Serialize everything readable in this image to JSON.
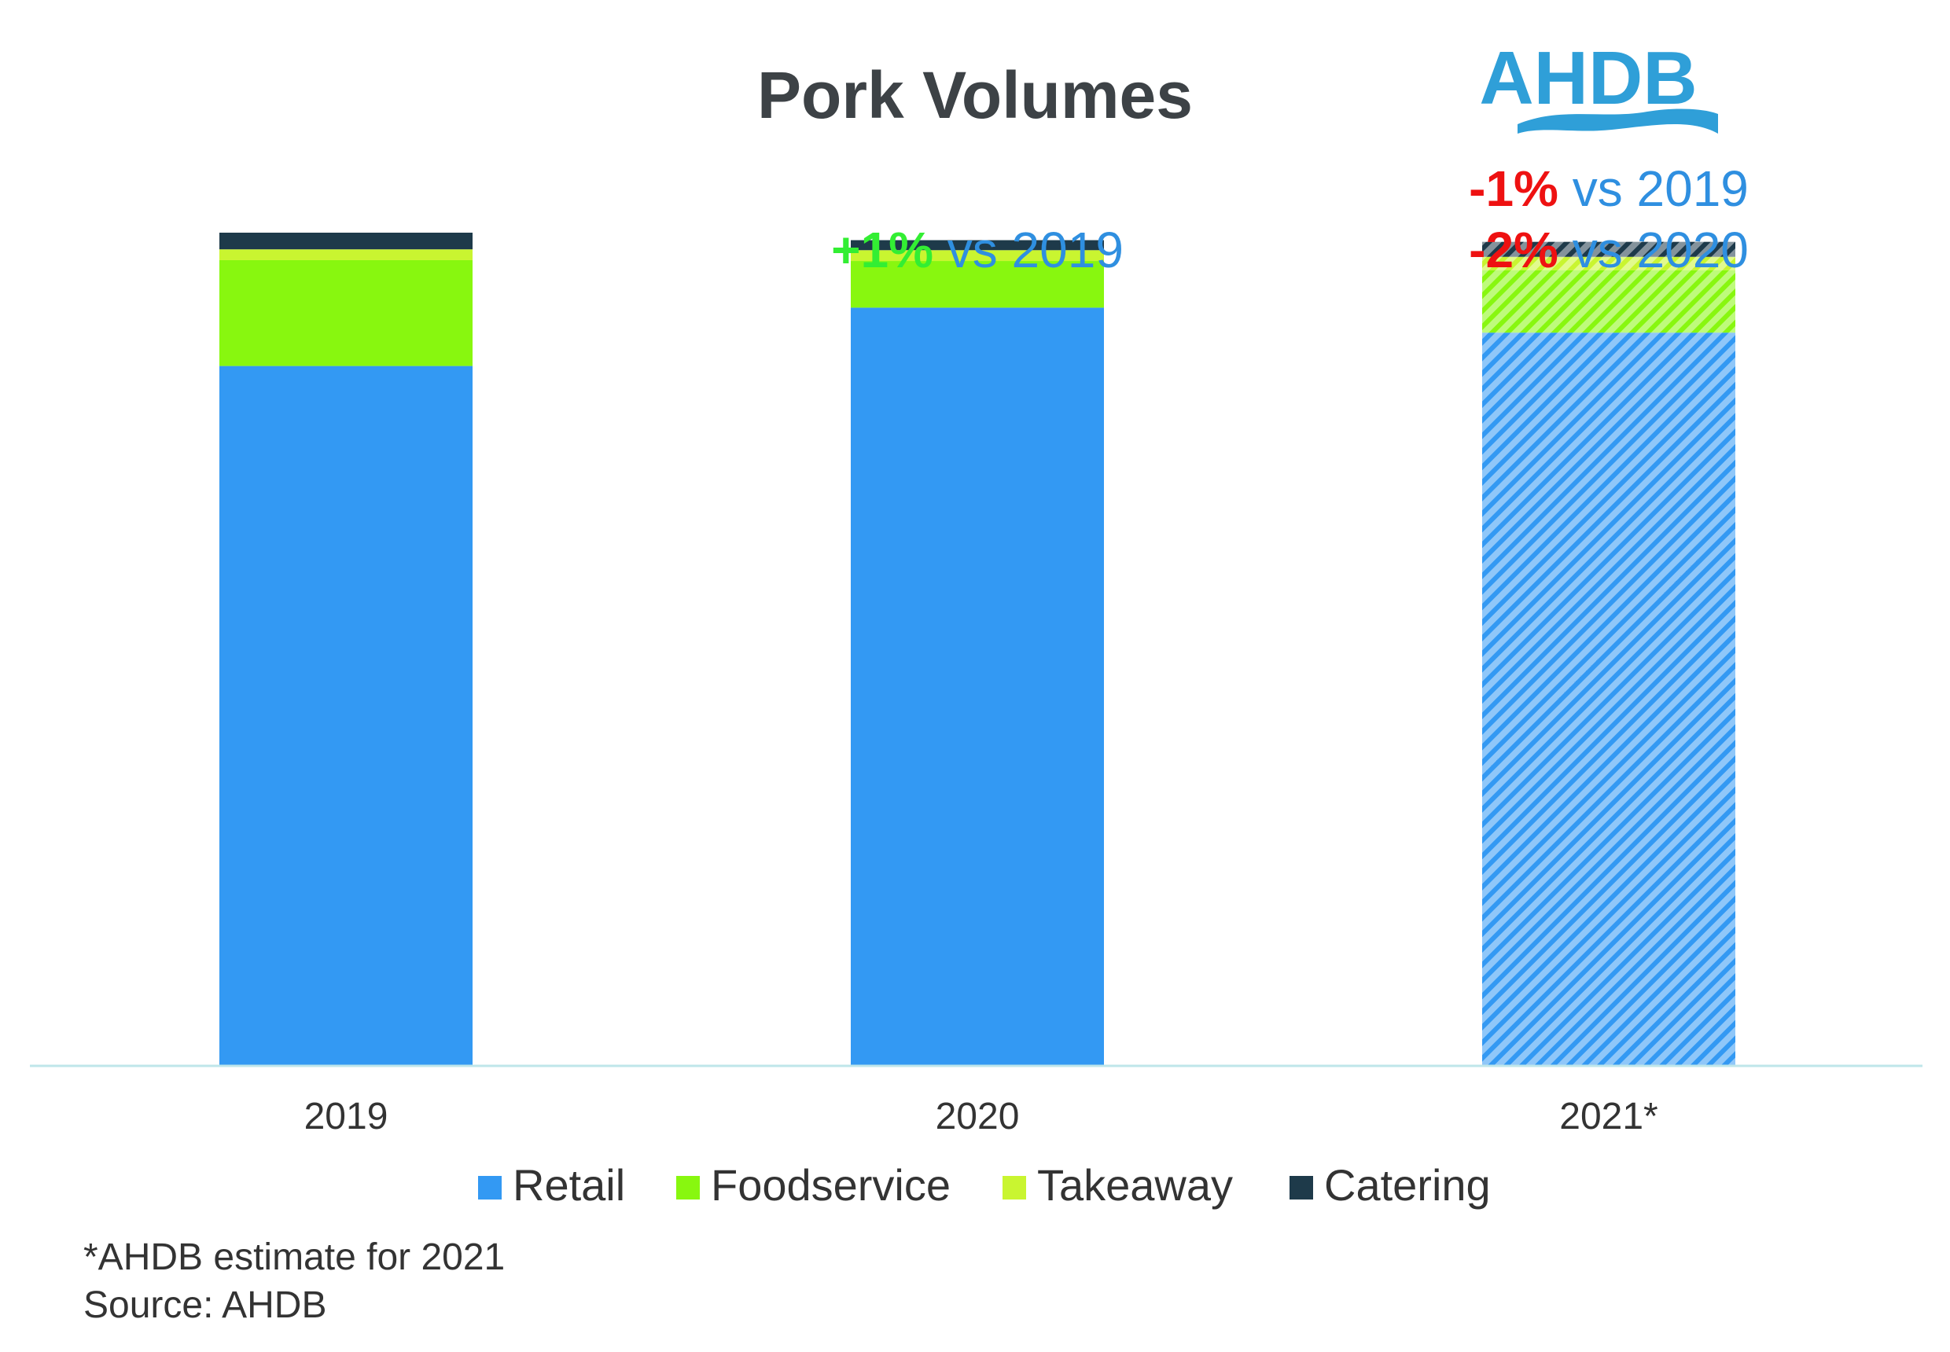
{
  "logo": {
    "text": "AHDB",
    "color": "#2f9fd8"
  },
  "chart_data": {
    "type": "bar",
    "stacked": true,
    "title": "Pork Volumes",
    "xlabel": "",
    "ylabel": "",
    "y_axis_visible": false,
    "grid": false,
    "ylim": [
      0,
      100
    ],
    "legend_position": "bottom",
    "categories": [
      "2019",
      "2020",
      "2021*"
    ],
    "estimated_categories": [
      "2021*"
    ],
    "series": [
      {
        "name": "Retail",
        "color": "#3399f3",
        "values": [
          84,
          91,
          88
        ]
      },
      {
        "name": "Foodservice",
        "color": "#88f70f",
        "values": [
          12.7,
          5.6,
          7.5
        ]
      },
      {
        "name": "Takeaway",
        "color": "#c9f530",
        "values": [
          1.3,
          1.3,
          1.6
        ]
      },
      {
        "name": "Catering",
        "color": "#1e3a4a",
        "values": [
          2.0,
          1.2,
          1.8
        ]
      }
    ],
    "annotations": [
      {
        "category": "2020",
        "lines": [
          {
            "value": "+1%",
            "value_color": "#33ee33",
            "text": " vs 2019"
          }
        ]
      },
      {
        "category": "2021*",
        "lines": [
          {
            "value": "-1%",
            "value_color": "#ee1111",
            "text": " vs 2019"
          },
          {
            "value": "-2%",
            "value_color": "#ee1111",
            "text": " vs 2020"
          }
        ]
      }
    ],
    "annotation_text_color": "#2f8fe0"
  },
  "footnotes": {
    "estimate_note": "*AHDB estimate for 2021",
    "source": "Source: AHDB"
  }
}
